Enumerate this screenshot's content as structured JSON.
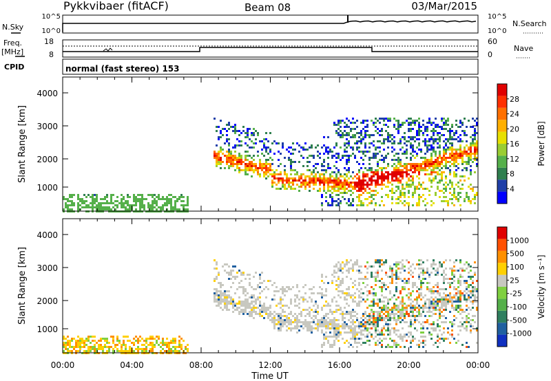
{
  "header": {
    "title": "Pykkvibaer (fitACF)",
    "beam": "Beam 08",
    "date": "03/Mar/2015"
  },
  "params": {
    "nsky_label": "N.Sky",
    "nsearch_label": "N.Search",
    "left_ticks": [
      "10^5",
      "10^0"
    ],
    "right_ticks": [
      "10^5",
      "10^0"
    ],
    "freq_label_line1": "Freq.",
    "freq_label_line2": "[MHz]",
    "freq_ticks": [
      "18",
      "8"
    ],
    "nave_label": "Nave",
    "nave_ticks": [
      "60",
      "0"
    ],
    "cpid_label": "CPID",
    "cpid_value": "normal (fast stereo) 153"
  },
  "chart_data": [
    {
      "type": "heatmap",
      "name": "power",
      "ylabel": "Slant Range [km]",
      "yticks": [
        "4000",
        "3000",
        "2000",
        "1000"
      ],
      "colorbar_label": "Power [dB]",
      "colorbar_ticks": [
        "28",
        "24",
        "20",
        "16",
        "12",
        "8",
        "4"
      ],
      "colors": [
        "#0000ff",
        "#1f3fa8",
        "#2f7f4f",
        "#55b04a",
        "#9acd32",
        "#e8e000",
        "#ffb000",
        "#ff7000",
        "#ff3000",
        "#e00000"
      ]
    },
    {
      "type": "heatmap",
      "name": "velocity",
      "ylabel": "Slant Range [km]",
      "yticks": [
        "4000",
        "3000",
        "2000",
        "1000"
      ],
      "colorbar_label": "Velocity [m s⁻¹]",
      "colorbar_ticks": [
        "1000",
        "500",
        "100",
        "25",
        "-25",
        "-100",
        "-500",
        "-1000"
      ],
      "colors": [
        "#1030c0",
        "#2060a0",
        "#2f7f5f",
        "#55b04a",
        "#7fd040",
        "#c8c8c0",
        "#ffd000",
        "#ff9000",
        "#ff5000",
        "#e00000"
      ],
      "xlabel": "Time UT",
      "xticks": [
        "00:00",
        "04:00",
        "08:00",
        "12:00",
        "16:00",
        "20:00",
        "00:00"
      ]
    }
  ]
}
